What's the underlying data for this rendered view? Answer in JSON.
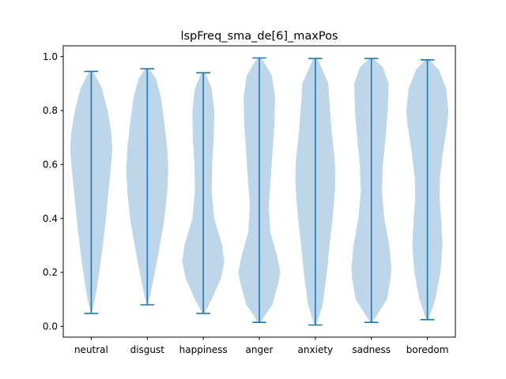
{
  "chart_data": {
    "type": "violin",
    "title": "lspFreq_sma_de[6]_maxPos",
    "xlabel": "",
    "ylabel": "",
    "categories": [
      "neutral",
      "disgust",
      "happiness",
      "anger",
      "anxiety",
      "sadness",
      "boredom"
    ],
    "ylim": [
      -0.04,
      1.04
    ],
    "yticks": [
      0.0,
      0.2,
      0.4,
      0.6,
      0.8,
      1.0
    ],
    "ytick_labels": [
      "0.0",
      "0.2",
      "0.4",
      "0.6",
      "0.8",
      "1.0"
    ],
    "grid": false,
    "colors": {
      "body": "#b9d4e8",
      "line": "#1f77b4"
    },
    "series": [
      {
        "category": "neutral",
        "min": 0.048,
        "max": 0.945,
        "density": [
          [
            0.048,
            0.02
          ],
          [
            0.1,
            0.18
          ],
          [
            0.2,
            0.38
          ],
          [
            0.3,
            0.55
          ],
          [
            0.4,
            0.7
          ],
          [
            0.5,
            0.82
          ],
          [
            0.6,
            0.95
          ],
          [
            0.66,
            1.0
          ],
          [
            0.72,
            0.95
          ],
          [
            0.8,
            0.78
          ],
          [
            0.88,
            0.52
          ],
          [
            0.945,
            0.1
          ]
        ]
      },
      {
        "category": "disgust",
        "min": 0.08,
        "max": 0.955,
        "density": [
          [
            0.08,
            0.02
          ],
          [
            0.12,
            0.15
          ],
          [
            0.2,
            0.36
          ],
          [
            0.3,
            0.6
          ],
          [
            0.4,
            0.82
          ],
          [
            0.5,
            0.95
          ],
          [
            0.58,
            1.0
          ],
          [
            0.66,
            0.95
          ],
          [
            0.75,
            0.82
          ],
          [
            0.85,
            0.65
          ],
          [
            0.92,
            0.4
          ],
          [
            0.955,
            0.1
          ]
        ]
      },
      {
        "category": "happiness",
        "min": 0.048,
        "max": 0.94,
        "density": [
          [
            0.048,
            0.05
          ],
          [
            0.1,
            0.4
          ],
          [
            0.18,
            0.85
          ],
          [
            0.24,
            1.0
          ],
          [
            0.3,
            0.9
          ],
          [
            0.4,
            0.52
          ],
          [
            0.5,
            0.4
          ],
          [
            0.6,
            0.42
          ],
          [
            0.7,
            0.5
          ],
          [
            0.8,
            0.52
          ],
          [
            0.88,
            0.4
          ],
          [
            0.94,
            0.1
          ]
        ]
      },
      {
        "category": "anger",
        "min": 0.015,
        "max": 0.995,
        "density": [
          [
            0.015,
            0.05
          ],
          [
            0.08,
            0.62
          ],
          [
            0.16,
            0.9
          ],
          [
            0.2,
            1.0
          ],
          [
            0.26,
            0.85
          ],
          [
            0.35,
            0.52
          ],
          [
            0.45,
            0.45
          ],
          [
            0.55,
            0.55
          ],
          [
            0.65,
            0.63
          ],
          [
            0.75,
            0.72
          ],
          [
            0.85,
            0.75
          ],
          [
            0.93,
            0.6
          ],
          [
            0.995,
            0.1
          ]
        ]
      },
      {
        "category": "anxiety",
        "min": 0.005,
        "max": 0.993,
        "density": [
          [
            0.005,
            0.05
          ],
          [
            0.08,
            0.35
          ],
          [
            0.2,
            0.55
          ],
          [
            0.3,
            0.68
          ],
          [
            0.4,
            0.82
          ],
          [
            0.5,
            0.93
          ],
          [
            0.55,
            0.95
          ],
          [
            0.62,
            0.92
          ],
          [
            0.72,
            0.78
          ],
          [
            0.82,
            0.68
          ],
          [
            0.9,
            0.62
          ],
          [
            0.993,
            0.1
          ]
        ]
      },
      {
        "category": "sadness",
        "min": 0.015,
        "max": 0.993,
        "density": [
          [
            0.015,
            0.05
          ],
          [
            0.1,
            0.75
          ],
          [
            0.18,
            0.92
          ],
          [
            0.22,
            0.95
          ],
          [
            0.3,
            0.85
          ],
          [
            0.4,
            0.62
          ],
          [
            0.5,
            0.5
          ],
          [
            0.6,
            0.55
          ],
          [
            0.7,
            0.68
          ],
          [
            0.8,
            0.78
          ],
          [
            0.9,
            0.82
          ],
          [
            0.96,
            0.55
          ],
          [
            0.993,
            0.1
          ]
        ]
      },
      {
        "category": "boredom",
        "min": 0.025,
        "max": 0.988,
        "density": [
          [
            0.025,
            0.05
          ],
          [
            0.1,
            0.38
          ],
          [
            0.2,
            0.62
          ],
          [
            0.3,
            0.72
          ],
          [
            0.4,
            0.65
          ],
          [
            0.48,
            0.58
          ],
          [
            0.55,
            0.6
          ],
          [
            0.65,
            0.75
          ],
          [
            0.75,
            0.95
          ],
          [
            0.8,
            1.0
          ],
          [
            0.88,
            0.9
          ],
          [
            0.95,
            0.55
          ],
          [
            0.988,
            0.1
          ]
        ]
      }
    ]
  }
}
